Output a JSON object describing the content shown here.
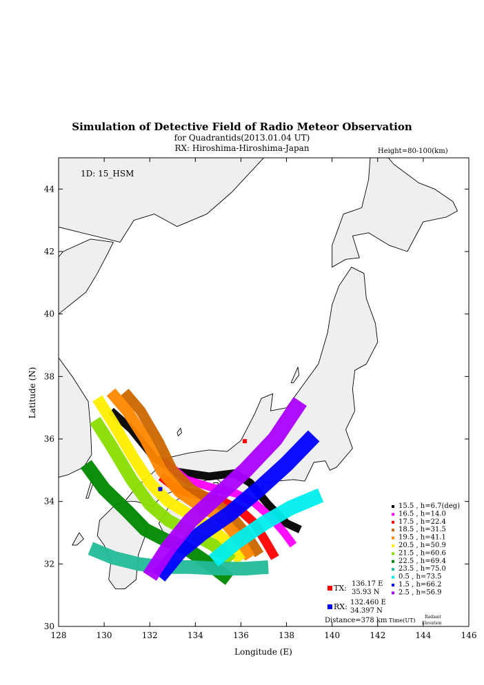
{
  "header": {
    "title": "Simulation of Detective Field of Radio Meteor Observation",
    "subtitle": "for Quadrantids(2013.01.04 UT)",
    "rx_line": "RX: Hiroshima-Hiroshima-Japan",
    "height_label": "Height=80-100(km)"
  },
  "id_label": "1D: 15_HSM",
  "tx": {
    "label": "TX:",
    "lon_text": "136.17 E",
    "lat_text": "35.93 N",
    "lon": 136.17,
    "lat": 35.93,
    "color": "#ff0000"
  },
  "rx": {
    "label": "RX:",
    "lon_text": "132.460 E",
    "lat_text": "34.397 N",
    "lon": 132.46,
    "lat": 34.397,
    "color": "#0000ff"
  },
  "distance": "Distance=378 km",
  "legend_footer": {
    "time": "Time(UT)",
    "radiant1": "Radiant",
    "radiant2": "Elevation"
  },
  "chart_data": {
    "type": "scatter",
    "xlabel": "Longitude (E)",
    "ylabel": "Latitude (N)",
    "xlim": [
      128,
      146
    ],
    "ylim": [
      30,
      45
    ],
    "xticks": [
      128,
      130,
      132,
      134,
      136,
      138,
      140,
      142,
      144,
      146
    ],
    "yticks": [
      30,
      32,
      34,
      36,
      38,
      40,
      42,
      44
    ],
    "series": [
      {
        "name": "15.5 ,  h=6.7(deg)",
        "color": "#000000",
        "width": 0.35,
        "path": [
          [
            130.3,
            36.9
          ],
          [
            131.2,
            36.3
          ],
          [
            132.2,
            35.4
          ],
          [
            133.2,
            34.95
          ],
          [
            134.6,
            34.8
          ],
          [
            135.7,
            34.9
          ],
          [
            136.4,
            34.6
          ],
          [
            137.2,
            33.9
          ],
          [
            138.0,
            33.3
          ],
          [
            138.6,
            33.1
          ]
        ]
      },
      {
        "name": "16.5 ,  h=14.0",
        "color": "#ff00ff",
        "width": 0.35,
        "path": [
          [
            132.6,
            35.3
          ],
          [
            133.6,
            34.7
          ],
          [
            134.7,
            34.45
          ],
          [
            135.8,
            34.25
          ],
          [
            136.6,
            33.95
          ],
          [
            137.3,
            33.5
          ],
          [
            137.9,
            33.0
          ],
          [
            138.3,
            32.6
          ]
        ]
      },
      {
        "name": "17.5 ,  h=22.4",
        "color": "#ff0000",
        "width": 0.4,
        "path": [
          [
            132.5,
            34.8
          ],
          [
            133.3,
            34.35
          ],
          [
            134.3,
            34.2
          ],
          [
            135.2,
            34.0
          ],
          [
            136.0,
            33.7
          ],
          [
            136.6,
            33.3
          ],
          [
            137.1,
            32.7
          ],
          [
            137.5,
            32.2
          ]
        ]
      },
      {
        "name": "18.5 ,  h=31.5",
        "color": "#cc6600",
        "width": 0.45,
        "path": [
          [
            130.9,
            37.5
          ],
          [
            131.6,
            36.9
          ],
          [
            132.4,
            35.9
          ],
          [
            133.0,
            35.0
          ],
          [
            133.8,
            34.4
          ],
          [
            134.8,
            34.0
          ],
          [
            135.5,
            33.6
          ],
          [
            136.2,
            33.0
          ],
          [
            136.8,
            32.3
          ]
        ]
      },
      {
        "name": "19.5 ,  h=41.1",
        "color": "#ff8800",
        "width": 0.5,
        "path": [
          [
            130.3,
            37.5
          ],
          [
            131.0,
            36.9
          ],
          [
            131.8,
            36.0
          ],
          [
            132.5,
            35.0
          ],
          [
            133.3,
            34.3
          ],
          [
            134.3,
            33.8
          ],
          [
            135.1,
            33.5
          ],
          [
            135.8,
            32.9
          ],
          [
            136.4,
            32.2
          ]
        ]
      },
      {
        "name": "20.5 ,  h=50.9",
        "color": "#ffee00",
        "width": 0.5,
        "path": [
          [
            129.7,
            37.3
          ],
          [
            130.4,
            36.5
          ],
          [
            131.2,
            35.5
          ],
          [
            132.0,
            34.6
          ],
          [
            132.8,
            34.0
          ],
          [
            133.7,
            33.6
          ],
          [
            134.6,
            33.2
          ],
          [
            135.4,
            32.7
          ],
          [
            136.0,
            32.1
          ]
        ]
      },
      {
        "name": "21.5 ,  h=60.6",
        "color": "#88dd00",
        "width": 0.55,
        "path": [
          [
            129.6,
            36.6
          ],
          [
            130.3,
            35.8
          ],
          [
            131.2,
            34.7
          ],
          [
            132.0,
            33.9
          ],
          [
            132.8,
            33.4
          ],
          [
            133.8,
            33.0
          ],
          [
            134.8,
            32.6
          ],
          [
            135.6,
            32.1
          ]
        ]
      },
      {
        "name": "22.5 ,  h=69.4",
        "color": "#008800",
        "width": 0.6,
        "path": [
          [
            129.2,
            35.2
          ],
          [
            130.0,
            34.4
          ],
          [
            131.0,
            33.7
          ],
          [
            131.8,
            33.1
          ],
          [
            132.6,
            32.8
          ],
          [
            133.6,
            32.5
          ],
          [
            134.6,
            32.0
          ],
          [
            135.5,
            31.5
          ]
        ]
      },
      {
        "name": "23.5 ,  h=75.0",
        "color": "#22bb99",
        "width": 0.6,
        "path": [
          [
            129.4,
            32.5
          ],
          [
            130.4,
            32.2
          ],
          [
            131.5,
            32.0
          ],
          [
            132.6,
            31.9
          ],
          [
            133.8,
            31.9
          ],
          [
            135.0,
            31.85
          ],
          [
            136.2,
            31.85
          ],
          [
            137.2,
            31.9
          ]
        ]
      },
      {
        "name": "0.5  ,  h=73.5",
        "color": "#00eeee",
        "width": 0.65,
        "path": [
          [
            134.8,
            32.1
          ],
          [
            135.8,
            32.7
          ],
          [
            137.0,
            33.3
          ],
          [
            138.2,
            33.8
          ],
          [
            139.5,
            34.2
          ]
        ]
      },
      {
        "name": "1.5  ,  h=66.2",
        "color": "#0000ff",
        "width": 0.7,
        "path": [
          [
            132.4,
            31.6
          ],
          [
            133.3,
            32.4
          ],
          [
            134.3,
            33.0
          ],
          [
            135.5,
            33.6
          ],
          [
            136.8,
            34.4
          ],
          [
            138.0,
            35.2
          ],
          [
            139.2,
            36.1
          ]
        ]
      },
      {
        "name": "2.5  ,  h=56.9",
        "color": "#aa00ff",
        "width": 0.7,
        "path": [
          [
            132.0,
            31.6
          ],
          [
            132.8,
            32.5
          ],
          [
            133.8,
            33.4
          ],
          [
            135.0,
            34.2
          ],
          [
            136.2,
            35.0
          ],
          [
            137.5,
            36.0
          ],
          [
            138.6,
            37.2
          ]
        ]
      }
    ],
    "land": [
      {
        "name": "honshu",
        "coords": [
          [
            130.9,
            34.0
          ],
          [
            131.4,
            34.45
          ],
          [
            132.1,
            34.9
          ],
          [
            132.8,
            35.4
          ],
          [
            133.7,
            35.55
          ],
          [
            134.6,
            35.65
          ],
          [
            135.4,
            35.6
          ],
          [
            136.0,
            35.95
          ],
          [
            136.6,
            36.8
          ],
          [
            136.9,
            37.3
          ],
          [
            137.4,
            37.45
          ],
          [
            137.3,
            36.9
          ],
          [
            138.0,
            37.0
          ],
          [
            138.8,
            37.8
          ],
          [
            139.4,
            38.4
          ],
          [
            139.8,
            39.4
          ],
          [
            140.0,
            40.3
          ],
          [
            140.3,
            40.9
          ],
          [
            140.85,
            41.5
          ],
          [
            141.4,
            41.3
          ],
          [
            141.5,
            40.5
          ],
          [
            141.9,
            39.7
          ],
          [
            142.0,
            39.1
          ],
          [
            141.5,
            38.4
          ],
          [
            141.0,
            38.2
          ],
          [
            140.9,
            37.6
          ],
          [
            141.0,
            36.9
          ],
          [
            140.6,
            36.3
          ],
          [
            140.9,
            35.7
          ],
          [
            140.2,
            35.1
          ],
          [
            139.9,
            35.0
          ],
          [
            139.7,
            35.3
          ],
          [
            139.2,
            35.25
          ],
          [
            138.8,
            34.65
          ],
          [
            138.3,
            34.7
          ],
          [
            137.6,
            34.65
          ],
          [
            137.0,
            34.6
          ],
          [
            136.9,
            34.3
          ],
          [
            136.4,
            34.0
          ],
          [
            135.8,
            33.5
          ],
          [
            135.1,
            33.9
          ],
          [
            135.3,
            34.5
          ],
          [
            134.9,
            34.75
          ],
          [
            134.0,
            34.6
          ],
          [
            133.3,
            34.4
          ],
          [
            132.6,
            34.2
          ],
          [
            132.1,
            33.85
          ],
          [
            131.4,
            34.0
          ]
        ]
      },
      {
        "name": "hokkaido",
        "coords": [
          [
            140.0,
            41.5
          ],
          [
            140.6,
            41.75
          ],
          [
            141.2,
            41.8
          ],
          [
            140.9,
            42.5
          ],
          [
            141.6,
            42.6
          ],
          [
            142.5,
            42.2
          ],
          [
            143.3,
            42.0
          ],
          [
            144.0,
            42.95
          ],
          [
            145.0,
            43.1
          ],
          [
            145.5,
            43.3
          ],
          [
            145.3,
            43.6
          ],
          [
            144.5,
            44.0
          ],
          [
            143.8,
            44.2
          ],
          [
            142.7,
            44.8
          ],
          [
            141.9,
            45.5
          ],
          [
            141.7,
            45.3
          ],
          [
            141.6,
            44.3
          ],
          [
            141.3,
            43.4
          ],
          [
            140.5,
            43.2
          ],
          [
            140.2,
            42.6
          ],
          [
            140.0,
            42.2
          ]
        ]
      },
      {
        "name": "shikoku",
        "coords": [
          [
            132.4,
            33.3
          ],
          [
            132.9,
            33.9
          ],
          [
            133.6,
            34.25
          ],
          [
            134.3,
            34.3
          ],
          [
            134.7,
            34.1
          ],
          [
            134.3,
            33.6
          ],
          [
            133.7,
            33.5
          ],
          [
            133.0,
            32.8
          ],
          [
            132.6,
            33.0
          ]
        ]
      },
      {
        "name": "kyushu",
        "coords": [
          [
            129.8,
            33.4
          ],
          [
            130.5,
            33.9
          ],
          [
            130.9,
            34.0
          ],
          [
            131.5,
            33.6
          ],
          [
            131.9,
            33.1
          ],
          [
            131.5,
            32.3
          ],
          [
            131.4,
            31.5
          ],
          [
            130.9,
            31.2
          ],
          [
            130.5,
            31.2
          ],
          [
            130.2,
            31.5
          ],
          [
            130.3,
            32.1
          ],
          [
            130.0,
            32.6
          ],
          [
            129.7,
            32.9
          ]
        ]
      },
      {
        "name": "korea",
        "coords": [
          [
            128.0,
            38.6
          ],
          [
            128.6,
            38.0
          ],
          [
            129.3,
            37.2
          ],
          [
            129.4,
            36.4
          ],
          [
            129.45,
            35.5
          ],
          [
            129.1,
            35.1
          ],
          [
            128.4,
            34.85
          ],
          [
            127.6,
            34.7
          ],
          [
            127.0,
            34.5
          ],
          [
            126.4,
            34.4
          ],
          [
            126.2,
            35.0
          ],
          [
            126.4,
            35.8
          ],
          [
            126.7,
            36.8
          ],
          [
            126.6,
            37.5
          ],
          [
            126.1,
            37.9
          ],
          [
            125.3,
            38.2
          ],
          [
            125.0,
            39.5
          ],
          [
            124.4,
            40.0
          ],
          [
            125.5,
            40.6
          ],
          [
            127.5,
            41.4
          ],
          [
            128.2,
            42.0
          ],
          [
            129.4,
            42.4
          ],
          [
            130.4,
            42.3
          ],
          [
            130.2,
            42.0
          ],
          [
            129.7,
            41.3
          ],
          [
            129.2,
            40.7
          ],
          [
            128.0,
            40.0
          ],
          [
            127.4,
            39.6
          ],
          [
            127.8,
            39.1
          ]
        ]
      },
      {
        "name": "asia",
        "coords": [
          [
            124.0,
            43.5
          ],
          [
            130.7,
            42.3
          ],
          [
            131.3,
            43.0
          ],
          [
            132.2,
            43.2
          ],
          [
            133.2,
            42.8
          ],
          [
            134.5,
            43.2
          ],
          [
            135.6,
            43.9
          ],
          [
            137.0,
            45.0
          ],
          [
            137.5,
            46.0
          ],
          [
            124.0,
            46.0
          ]
        ]
      },
      {
        "name": "sakhalin",
        "coords": [
          [
            141.75,
            46.0
          ],
          [
            141.9,
            45.6
          ],
          [
            142.3,
            46.0
          ],
          [
            143.4,
            46.0
          ]
        ]
      },
      {
        "name": "sado",
        "coords": [
          [
            138.2,
            37.8
          ],
          [
            138.5,
            38.3
          ],
          [
            138.55,
            38.05
          ],
          [
            138.3,
            37.8
          ]
        ]
      },
      {
        "name": "oki",
        "coords": [
          [
            133.2,
            36.2
          ],
          [
            133.35,
            36.35
          ],
          [
            133.4,
            36.2
          ],
          [
            133.25,
            36.1
          ]
        ]
      },
      {
        "name": "awaji",
        "coords": [
          [
            134.8,
            34.6
          ],
          [
            135.0,
            34.6
          ],
          [
            134.9,
            34.25
          ],
          [
            134.75,
            34.3
          ]
        ]
      },
      {
        "name": "tsushima",
        "coords": [
          [
            129.2,
            34.1
          ],
          [
            129.45,
            34.7
          ],
          [
            129.5,
            34.55
          ],
          [
            129.3,
            34.1
          ]
        ]
      },
      {
        "name": "goto",
        "coords": [
          [
            128.6,
            32.6
          ],
          [
            128.9,
            33.0
          ],
          [
            129.1,
            32.8
          ],
          [
            128.8,
            32.6
          ]
        ]
      }
    ]
  }
}
